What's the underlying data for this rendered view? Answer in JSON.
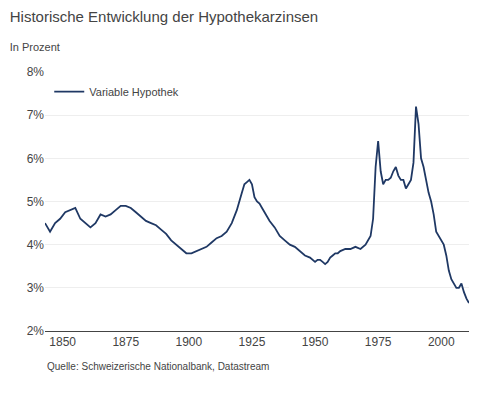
{
  "chart_data": {
    "type": "line",
    "title": "Historische Entwicklung der Hypothekarzinsen",
    "subtitle": "In Prozent",
    "annotations": [
      "Quelle: Schweizerische Nationalbank, Datastream"
    ],
    "x": [
      1843,
      1845,
      1847,
      1849,
      1851,
      1853,
      1855,
      1857,
      1859,
      1861,
      1863,
      1865,
      1867,
      1869,
      1871,
      1873,
      1875,
      1877,
      1879,
      1881,
      1883,
      1885,
      1887,
      1889,
      1891,
      1893,
      1895,
      1897,
      1899,
      1901,
      1903,
      1905,
      1907,
      1909,
      1911,
      1913,
      1915,
      1917,
      1919,
      1921,
      1922,
      1923,
      1924,
      1925,
      1926,
      1927,
      1928,
      1929,
      1930,
      1932,
      1934,
      1936,
      1938,
      1940,
      1942,
      1944,
      1946,
      1948,
      1950,
      1951,
      1952,
      1953,
      1954,
      1955,
      1956,
      1957,
      1958,
      1959,
      1960,
      1962,
      1964,
      1966,
      1968,
      1970,
      1972,
      1973,
      1974,
      1975,
      1976,
      1977,
      1978,
      1979,
      1980,
      1981,
      1982,
      1983,
      1984,
      1985,
      1986,
      1987,
      1988,
      1989,
      1990,
      1991,
      1992,
      1993,
      1994,
      1995,
      1996,
      1997,
      1998,
      1999,
      2000,
      2001,
      2002,
      2003,
      2004,
      2005,
      2006,
      2007,
      2008,
      2009,
      2010,
      2011
    ],
    "series": [
      {
        "name": "Variable Hypothek",
        "color": "#1f3864",
        "values": [
          4.5,
          4.3,
          4.5,
          4.6,
          4.75,
          4.8,
          4.85,
          4.6,
          4.5,
          4.4,
          4.5,
          4.7,
          4.65,
          4.7,
          4.8,
          4.9,
          4.9,
          4.85,
          4.75,
          4.65,
          4.55,
          4.5,
          4.45,
          4.35,
          4.25,
          4.1,
          4.0,
          3.9,
          3.8,
          3.8,
          3.85,
          3.9,
          3.95,
          4.05,
          4.15,
          4.2,
          4.3,
          4.5,
          4.8,
          5.2,
          5.4,
          5.45,
          5.5,
          5.4,
          5.1,
          5.0,
          4.95,
          4.85,
          4.75,
          4.55,
          4.4,
          4.2,
          4.1,
          4.0,
          3.95,
          3.85,
          3.75,
          3.7,
          3.6,
          3.65,
          3.65,
          3.6,
          3.55,
          3.6,
          3.7,
          3.75,
          3.8,
          3.8,
          3.85,
          3.9,
          3.9,
          3.95,
          3.9,
          4.0,
          4.2,
          4.6,
          5.8,
          6.4,
          5.7,
          5.4,
          5.5,
          5.5,
          5.55,
          5.7,
          5.8,
          5.6,
          5.5,
          5.5,
          5.3,
          5.4,
          5.5,
          5.9,
          7.2,
          6.8,
          6.0,
          5.8,
          5.5,
          5.2,
          5.0,
          4.7,
          4.3,
          4.2,
          4.1,
          4.0,
          3.75,
          3.4,
          3.2,
          3.1,
          3.0,
          3.0,
          3.1,
          2.9,
          2.75,
          2.65
        ]
      }
    ],
    "xlim": [
      1843,
      2011
    ],
    "xticks": [
      1850,
      1875,
      1900,
      1925,
      1950,
      1975,
      2000
    ],
    "ylim": [
      2,
      8
    ],
    "yticks": [
      {
        "value": 2,
        "label": "2%"
      },
      {
        "value": 3,
        "label": "3%"
      },
      {
        "value": 4,
        "label": "4%"
      },
      {
        "value": 5,
        "label": "5%"
      },
      {
        "value": 6,
        "label": "6%"
      },
      {
        "value": 7,
        "label": "7%"
      },
      {
        "value": 8,
        "label": "8%"
      }
    ],
    "grid": true,
    "legend": "upper left"
  }
}
